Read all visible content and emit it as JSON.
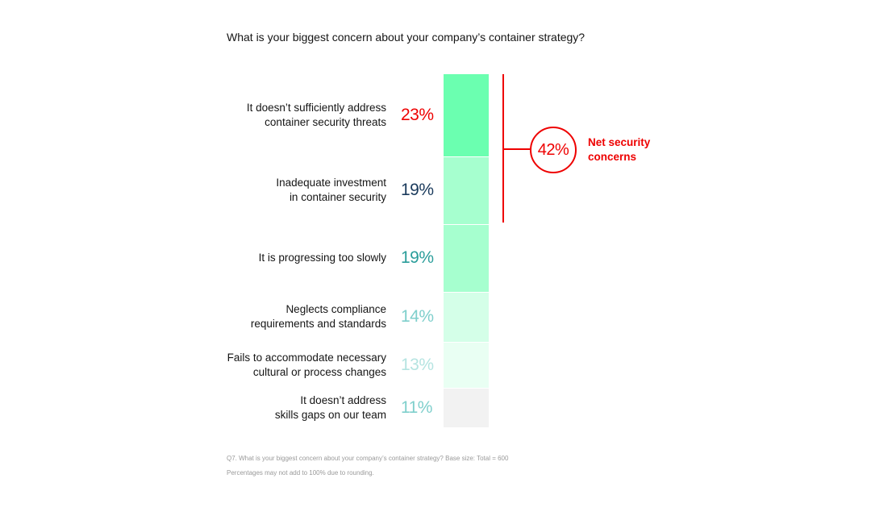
{
  "chart_data": {
    "type": "bar",
    "title": "What is your biggest concern about your company’s container strategy?",
    "categories": [
      [
        "It doesn’t sufficiently address",
        "container security threats"
      ],
      [
        "Inadequate investment",
        "in container security"
      ],
      [
        "It is progressing too slowly"
      ],
      [
        "Neglects compliance",
        "requirements and standards"
      ],
      [
        "Fails to accommodate necessary",
        "cultural or process changes"
      ],
      [
        "It doesn’t address",
        "skills gaps on our team"
      ]
    ],
    "values": [
      23,
      19,
      19,
      14,
      13,
      11
    ],
    "value_labels": [
      "23%",
      "19%",
      "19%",
      "14%",
      "13%",
      "11%"
    ],
    "value_label_colors": [
      "#ee0000",
      "#1a3a5c",
      "#2a9d9a",
      "#7fcfcc",
      "#b5e4e1",
      "#7fcfcc"
    ],
    "bar_colors": [
      "#6bffb0",
      "#a6ffcf",
      "#a6ffcf",
      "#d4ffe8",
      "#e9fff3",
      "#f2f2f2"
    ],
    "unit": "%",
    "annotation": {
      "value": "42%",
      "label": [
        "Net security",
        "concerns"
      ],
      "color": "#ee0000",
      "covers_categories": [
        0,
        1
      ]
    }
  },
  "footnotes": [
    "Q7. What is your biggest concern about your company’s container strategy? Base size: Total = 600",
    "Percentages may not add to 100% due to rounding."
  ]
}
